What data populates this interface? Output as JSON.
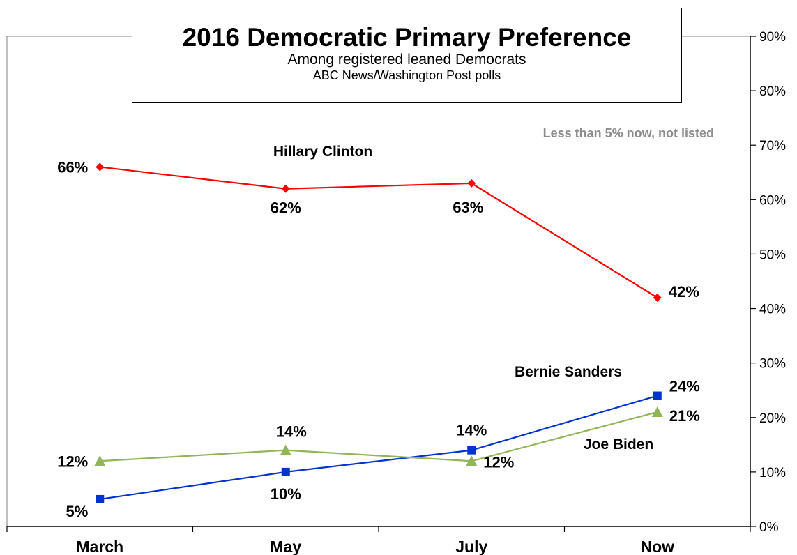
{
  "title": "2016 Democratic Primary Preference",
  "subtitle": "Among registered leaned Democrats",
  "source": "ABC News/Washington  Post polls",
  "note": "Less than 5% now, not listed",
  "colors": {
    "clinton": "#ff0000",
    "sanders": "#0033cc",
    "biden": "#92b55a"
  },
  "chart_data": {
    "type": "line",
    "categories": [
      "March",
      "May",
      "July",
      "Now"
    ],
    "ylim": [
      0,
      90
    ],
    "y_ticks": [
      "0%",
      "10%",
      "20%",
      "30%",
      "40%",
      "50%",
      "60%",
      "70%",
      "80%",
      "90%"
    ],
    "y_axis_side": "right",
    "grid": false,
    "series": [
      {
        "name": "Hillary Clinton",
        "values": [
          66,
          62,
          63,
          42
        ],
        "labels": [
          "66%",
          "62%",
          "63%",
          "42%"
        ],
        "color": "#ff0000",
        "marker": "diamond"
      },
      {
        "name": "Bernie Sanders",
        "values": [
          5,
          10,
          14,
          24
        ],
        "labels": [
          "5%",
          "10%",
          "14%",
          "24%"
        ],
        "color": "#0033cc",
        "marker": "square"
      },
      {
        "name": "Joe Biden",
        "values": [
          12,
          14,
          12,
          21
        ],
        "labels": [
          "12%",
          "14%",
          "12%",
          "21%"
        ],
        "color": "#92b55a",
        "marker": "triangle"
      }
    ]
  }
}
